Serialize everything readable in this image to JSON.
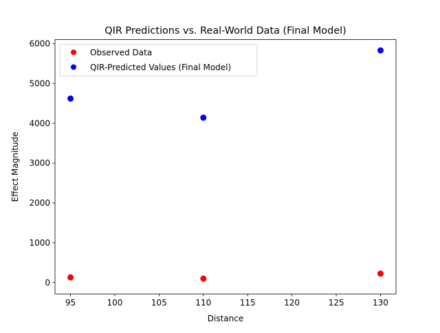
{
  "chart_data": {
    "type": "scatter",
    "title": "QIR Predictions vs. Real-World Data (Final Model)",
    "xlabel": "Distance",
    "ylabel": "Effect Magnitude",
    "xlim": [
      93.25,
      131.75
    ],
    "ylim": [
      -285,
      6100
    ],
    "xticks": [
      95,
      100,
      105,
      110,
      115,
      120,
      125,
      130
    ],
    "yticks": [
      0,
      1000,
      2000,
      3000,
      4000,
      5000,
      6000
    ],
    "grid": false,
    "legend_position": "upper-left",
    "series": [
      {
        "name": "Observed Data",
        "color": "#ff0000",
        "points": [
          {
            "x": 95,
            "y": 130
          },
          {
            "x": 110,
            "y": 100
          },
          {
            "x": 130,
            "y": 225
          }
        ]
      },
      {
        "name": "QIR-Predicted Values (Final Model)",
        "color": "#0000ff",
        "points": [
          {
            "x": 95,
            "y": 4620
          },
          {
            "x": 110,
            "y": 4140
          },
          {
            "x": 130,
            "y": 5830
          }
        ]
      }
    ]
  }
}
